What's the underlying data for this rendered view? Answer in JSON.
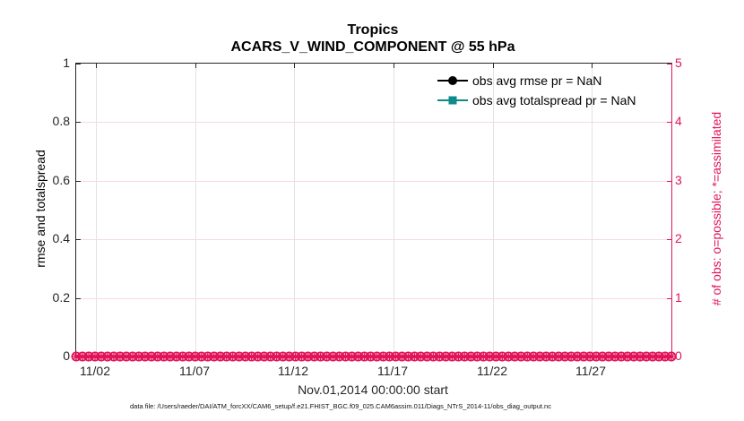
{
  "title": "Tropics",
  "subtitle": "ACARS_V_WIND_COMPONENT @ 55 hPa",
  "left_axis": {
    "label": "rmse and totalspread",
    "ticks": [
      "0",
      "0.2",
      "0.4",
      "0.6",
      "0.8",
      "1"
    ],
    "lim": [
      0,
      1
    ],
    "color": "#262626"
  },
  "right_axis": {
    "label": "# of obs: o=possible; *=assimilated",
    "ticks": [
      "0",
      "1",
      "2",
      "3",
      "4",
      "5"
    ],
    "lim": [
      0,
      5
    ],
    "color": "#e1145a"
  },
  "x_axis": {
    "label": "Nov.01,2014 00:00:00 start",
    "ticks": [
      "11/02",
      "11/07",
      "11/12",
      "11/17",
      "11/22",
      "11/27"
    ],
    "range_days": 30
  },
  "legend": [
    {
      "label": "obs avg rmse pr = NaN",
      "color": "#000000",
      "marker": "circle"
    },
    {
      "label": "obs avg totalspread pr = NaN",
      "color": "#0e8a8a",
      "marker": "square"
    }
  ],
  "footer": "data file: /Users/raeder/DAI/ATM_forcXX/CAM6_setup/f.e21.FHIST_BGC.f09_025.CAM6assim.011/Diags_NTrS_2014-11/obs_diag_output.nc",
  "colors": {
    "obs_count": "#e1145a",
    "grid_vertical": "#e2e2e2",
    "grid_horizontal": "#f9d9e3",
    "axis_dark": "#262626",
    "teal": "#0e8a8a"
  },
  "chart_data": {
    "type": "line",
    "title": "Tropics — ACARS_V_WIND_COMPONENT @ 55 hPa",
    "xlabel": "Nov.01,2014 00:00:00 start",
    "x_tick_labels": [
      "11/02",
      "11/07",
      "11/12",
      "11/17",
      "11/22",
      "11/27"
    ],
    "x_range": [
      "2014-11-01 00:00:00",
      "2014-12-01 00:00:00"
    ],
    "left_ylabel": "rmse and totalspread",
    "left_ylim": [
      0,
      1
    ],
    "right_ylabel": "# of obs: o=possible; *=assimilated",
    "right_ylim": [
      0,
      5
    ],
    "grid": true,
    "legend_position": "top-right-inside",
    "series": [
      {
        "name": "obs avg rmse",
        "axis": "left",
        "marker": "circle",
        "color": "#000000",
        "values": "NaN (no points plotted)"
      },
      {
        "name": "obs avg totalspread",
        "axis": "left",
        "marker": "square",
        "color": "#0e8a8a",
        "values": "NaN (no points plotted)"
      },
      {
        "name": "# of obs possible",
        "axis": "right",
        "marker": "o",
        "color": "#e1145a",
        "constant_value": 0,
        "n_points": 96
      },
      {
        "name": "# of obs assimilated",
        "axis": "right",
        "marker": "*",
        "color": "#e1145a",
        "constant_value": 0,
        "n_points": 96
      }
    ]
  }
}
